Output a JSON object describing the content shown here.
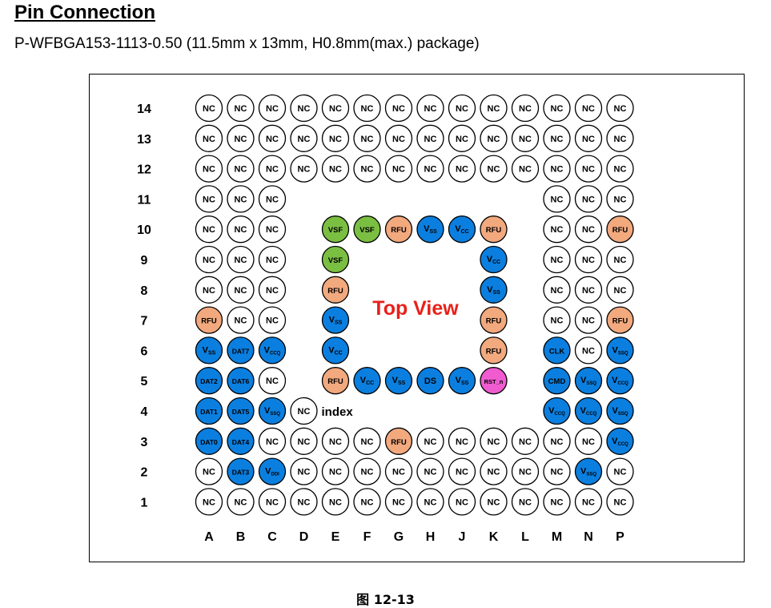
{
  "title": "Pin Connection",
  "subtitle": "P-WFBGA153-1113-0.50 (11.5mm x 13mm, H0.8mm(max.) package)",
  "top_view": "Top View",
  "index_label": "index",
  "caption": "图 12-13",
  "colors": {
    "nc": "#ffffff",
    "blue": "#0a7fe0",
    "orange": "#f2a97e",
    "green": "#7bbf42",
    "pink": "#f05bd0",
    "top_view": "#e8201a"
  },
  "columns": [
    "A",
    "B",
    "C",
    "D",
    "E",
    "F",
    "G",
    "H",
    "J",
    "K",
    "L",
    "M",
    "N",
    "P"
  ],
  "rows": [
    "14",
    "13",
    "12",
    "11",
    "10",
    "9",
    "8",
    "7",
    "6",
    "5",
    "4",
    "3",
    "2",
    "1"
  ],
  "pins": [
    {
      "row": "14",
      "col": "A",
      "label": "NC",
      "color": "nc"
    },
    {
      "row": "14",
      "col": "B",
      "label": "NC",
      "color": "nc"
    },
    {
      "row": "14",
      "col": "C",
      "label": "NC",
      "color": "nc"
    },
    {
      "row": "14",
      "col": "D",
      "label": "NC",
      "color": "nc"
    },
    {
      "row": "14",
      "col": "E",
      "label": "NC",
      "color": "nc"
    },
    {
      "row": "14",
      "col": "F",
      "label": "NC",
      "color": "nc"
    },
    {
      "row": "14",
      "col": "G",
      "label": "NC",
      "color": "nc"
    },
    {
      "row": "14",
      "col": "H",
      "label": "NC",
      "color": "nc"
    },
    {
      "row": "14",
      "col": "J",
      "label": "NC",
      "color": "nc"
    },
    {
      "row": "14",
      "col": "K",
      "label": "NC",
      "color": "nc"
    },
    {
      "row": "14",
      "col": "L",
      "label": "NC",
      "color": "nc"
    },
    {
      "row": "14",
      "col": "M",
      "label": "NC",
      "color": "nc"
    },
    {
      "row": "14",
      "col": "N",
      "label": "NC",
      "color": "nc"
    },
    {
      "row": "14",
      "col": "P",
      "label": "NC",
      "color": "nc"
    },
    {
      "row": "13",
      "col": "A",
      "label": "NC",
      "color": "nc"
    },
    {
      "row": "13",
      "col": "B",
      "label": "NC",
      "color": "nc"
    },
    {
      "row": "13",
      "col": "C",
      "label": "NC",
      "color": "nc"
    },
    {
      "row": "13",
      "col": "D",
      "label": "NC",
      "color": "nc"
    },
    {
      "row": "13",
      "col": "E",
      "label": "NC",
      "color": "nc"
    },
    {
      "row": "13",
      "col": "F",
      "label": "NC",
      "color": "nc"
    },
    {
      "row": "13",
      "col": "G",
      "label": "NC",
      "color": "nc"
    },
    {
      "row": "13",
      "col": "H",
      "label": "NC",
      "color": "nc"
    },
    {
      "row": "13",
      "col": "J",
      "label": "NC",
      "color": "nc"
    },
    {
      "row": "13",
      "col": "K",
      "label": "NC",
      "color": "nc"
    },
    {
      "row": "13",
      "col": "L",
      "label": "NC",
      "color": "nc"
    },
    {
      "row": "13",
      "col": "M",
      "label": "NC",
      "color": "nc"
    },
    {
      "row": "13",
      "col": "N",
      "label": "NC",
      "color": "nc"
    },
    {
      "row": "13",
      "col": "P",
      "label": "NC",
      "color": "nc"
    },
    {
      "row": "12",
      "col": "A",
      "label": "NC",
      "color": "nc"
    },
    {
      "row": "12",
      "col": "B",
      "label": "NC",
      "color": "nc"
    },
    {
      "row": "12",
      "col": "C",
      "label": "NC",
      "color": "nc"
    },
    {
      "row": "12",
      "col": "D",
      "label": "NC",
      "color": "nc"
    },
    {
      "row": "12",
      "col": "E",
      "label": "NC",
      "color": "nc"
    },
    {
      "row": "12",
      "col": "F",
      "label": "NC",
      "color": "nc"
    },
    {
      "row": "12",
      "col": "G",
      "label": "NC",
      "color": "nc"
    },
    {
      "row": "12",
      "col": "H",
      "label": "NC",
      "color": "nc"
    },
    {
      "row": "12",
      "col": "J",
      "label": "NC",
      "color": "nc"
    },
    {
      "row": "12",
      "col": "K",
      "label": "NC",
      "color": "nc"
    },
    {
      "row": "12",
      "col": "L",
      "label": "NC",
      "color": "nc"
    },
    {
      "row": "12",
      "col": "M",
      "label": "NC",
      "color": "nc"
    },
    {
      "row": "12",
      "col": "N",
      "label": "NC",
      "color": "nc"
    },
    {
      "row": "12",
      "col": "P",
      "label": "NC",
      "color": "nc"
    },
    {
      "row": "11",
      "col": "A",
      "label": "NC",
      "color": "nc"
    },
    {
      "row": "11",
      "col": "B",
      "label": "NC",
      "color": "nc"
    },
    {
      "row": "11",
      "col": "C",
      "label": "NC",
      "color": "nc"
    },
    {
      "row": "11",
      "col": "M",
      "label": "NC",
      "color": "nc"
    },
    {
      "row": "11",
      "col": "N",
      "label": "NC",
      "color": "nc"
    },
    {
      "row": "11",
      "col": "P",
      "label": "NC",
      "color": "nc"
    },
    {
      "row": "10",
      "col": "A",
      "label": "NC",
      "color": "nc"
    },
    {
      "row": "10",
      "col": "B",
      "label": "NC",
      "color": "nc"
    },
    {
      "row": "10",
      "col": "C",
      "label": "NC",
      "color": "nc"
    },
    {
      "row": "10",
      "col": "E",
      "label": "VSF",
      "color": "green"
    },
    {
      "row": "10",
      "col": "F",
      "label": "VSF",
      "color": "green"
    },
    {
      "row": "10",
      "col": "G",
      "label": "RFU",
      "color": "orange"
    },
    {
      "row": "10",
      "col": "H",
      "label": "V",
      "sub": "SS",
      "color": "blue"
    },
    {
      "row": "10",
      "col": "J",
      "label": "V",
      "sub": "CC",
      "color": "blue"
    },
    {
      "row": "10",
      "col": "K",
      "label": "RFU",
      "color": "orange"
    },
    {
      "row": "10",
      "col": "M",
      "label": "NC",
      "color": "nc"
    },
    {
      "row": "10",
      "col": "N",
      "label": "NC",
      "color": "nc"
    },
    {
      "row": "10",
      "col": "P",
      "label": "RFU",
      "color": "orange"
    },
    {
      "row": "9",
      "col": "A",
      "label": "NC",
      "color": "nc"
    },
    {
      "row": "9",
      "col": "B",
      "label": "NC",
      "color": "nc"
    },
    {
      "row": "9",
      "col": "C",
      "label": "NC",
      "color": "nc"
    },
    {
      "row": "9",
      "col": "E",
      "label": "VSF",
      "color": "green"
    },
    {
      "row": "9",
      "col": "K",
      "label": "V",
      "sub": "CC",
      "color": "blue"
    },
    {
      "row": "9",
      "col": "M",
      "label": "NC",
      "color": "nc"
    },
    {
      "row": "9",
      "col": "N",
      "label": "NC",
      "color": "nc"
    },
    {
      "row": "9",
      "col": "P",
      "label": "NC",
      "color": "nc"
    },
    {
      "row": "8",
      "col": "A",
      "label": "NC",
      "color": "nc"
    },
    {
      "row": "8",
      "col": "B",
      "label": "NC",
      "color": "nc"
    },
    {
      "row": "8",
      "col": "C",
      "label": "NC",
      "color": "nc"
    },
    {
      "row": "8",
      "col": "E",
      "label": "RFU",
      "color": "orange"
    },
    {
      "row": "8",
      "col": "K",
      "label": "V",
      "sub": "SS",
      "color": "blue"
    },
    {
      "row": "8",
      "col": "M",
      "label": "NC",
      "color": "nc"
    },
    {
      "row": "8",
      "col": "N",
      "label": "NC",
      "color": "nc"
    },
    {
      "row": "8",
      "col": "P",
      "label": "NC",
      "color": "nc"
    },
    {
      "row": "7",
      "col": "A",
      "label": "RFU",
      "color": "orange"
    },
    {
      "row": "7",
      "col": "B",
      "label": "NC",
      "color": "nc"
    },
    {
      "row": "7",
      "col": "C",
      "label": "NC",
      "color": "nc"
    },
    {
      "row": "7",
      "col": "E",
      "label": "V",
      "sub": "SS",
      "color": "blue"
    },
    {
      "row": "7",
      "col": "K",
      "label": "RFU",
      "color": "orange"
    },
    {
      "row": "7",
      "col": "M",
      "label": "NC",
      "color": "nc"
    },
    {
      "row": "7",
      "col": "N",
      "label": "NC",
      "color": "nc"
    },
    {
      "row": "7",
      "col": "P",
      "label": "RFU",
      "color": "orange"
    },
    {
      "row": "6",
      "col": "A",
      "label": "V",
      "sub": "SS",
      "color": "blue"
    },
    {
      "row": "6",
      "col": "B",
      "label": "DAT7",
      "color": "blue"
    },
    {
      "row": "6",
      "col": "C",
      "label": "V",
      "sub": "CCQ",
      "color": "blue"
    },
    {
      "row": "6",
      "col": "E",
      "label": "V",
      "sub": "CC",
      "color": "blue"
    },
    {
      "row": "6",
      "col": "K",
      "label": "RFU",
      "color": "orange"
    },
    {
      "row": "6",
      "col": "M",
      "label": "CLK",
      "color": "blue"
    },
    {
      "row": "6",
      "col": "N",
      "label": "NC",
      "color": "nc"
    },
    {
      "row": "6",
      "col": "P",
      "label": "V",
      "sub": "SSQ",
      "color": "blue"
    },
    {
      "row": "5",
      "col": "A",
      "label": "DAT2",
      "color": "blue"
    },
    {
      "row": "5",
      "col": "B",
      "label": "DAT6",
      "color": "blue"
    },
    {
      "row": "5",
      "col": "C",
      "label": "NC",
      "color": "nc"
    },
    {
      "row": "5",
      "col": "E",
      "label": "RFU",
      "color": "orange"
    },
    {
      "row": "5",
      "col": "F",
      "label": "V",
      "sub": "CC",
      "color": "blue"
    },
    {
      "row": "5",
      "col": "G",
      "label": "V",
      "sub": "SS",
      "color": "blue"
    },
    {
      "row": "5",
      "col": "H",
      "label": "DS",
      "color": "blue"
    },
    {
      "row": "5",
      "col": "J",
      "label": "V",
      "sub": "SS",
      "color": "blue"
    },
    {
      "row": "5",
      "col": "K",
      "label": "RST_n",
      "color": "pink"
    },
    {
      "row": "5",
      "col": "M",
      "label": "CMD",
      "color": "blue"
    },
    {
      "row": "5",
      "col": "N",
      "label": "V",
      "sub": "SSQ",
      "color": "blue"
    },
    {
      "row": "5",
      "col": "P",
      "label": "V",
      "sub": "CCQ",
      "color": "blue"
    },
    {
      "row": "4",
      "col": "A",
      "label": "DAT1",
      "color": "blue"
    },
    {
      "row": "4",
      "col": "B",
      "label": "DAT5",
      "color": "blue"
    },
    {
      "row": "4",
      "col": "C",
      "label": "V",
      "sub": "SSQ",
      "color": "blue"
    },
    {
      "row": "4",
      "col": "D",
      "label": "NC",
      "color": "nc"
    },
    {
      "row": "4",
      "col": "M",
      "label": "V",
      "sub": "CCQ",
      "color": "blue"
    },
    {
      "row": "4",
      "col": "N",
      "label": "V",
      "sub": "CCQ",
      "color": "blue"
    },
    {
      "row": "4",
      "col": "P",
      "label": "V",
      "sub": "SSQ",
      "color": "blue"
    },
    {
      "row": "3",
      "col": "A",
      "label": "DAT0",
      "color": "blue"
    },
    {
      "row": "3",
      "col": "B",
      "label": "DAT4",
      "color": "blue"
    },
    {
      "row": "3",
      "col": "C",
      "label": "NC",
      "color": "nc"
    },
    {
      "row": "3",
      "col": "D",
      "label": "NC",
      "color": "nc"
    },
    {
      "row": "3",
      "col": "E",
      "label": "NC",
      "color": "nc"
    },
    {
      "row": "3",
      "col": "F",
      "label": "NC",
      "color": "nc"
    },
    {
      "row": "3",
      "col": "G",
      "label": "RFU",
      "color": "orange"
    },
    {
      "row": "3",
      "col": "H",
      "label": "NC",
      "color": "nc"
    },
    {
      "row": "3",
      "col": "J",
      "label": "NC",
      "color": "nc"
    },
    {
      "row": "3",
      "col": "K",
      "label": "NC",
      "color": "nc"
    },
    {
      "row": "3",
      "col": "L",
      "label": "NC",
      "color": "nc"
    },
    {
      "row": "3",
      "col": "M",
      "label": "NC",
      "color": "nc"
    },
    {
      "row": "3",
      "col": "N",
      "label": "NC",
      "color": "nc"
    },
    {
      "row": "3",
      "col": "P",
      "label": "V",
      "sub": "CCQ",
      "color": "blue"
    },
    {
      "row": "2",
      "col": "A",
      "label": "NC",
      "color": "nc"
    },
    {
      "row": "2",
      "col": "B",
      "label": "DAT3",
      "color": "blue"
    },
    {
      "row": "2",
      "col": "C",
      "label": "V",
      "sub": "DDI",
      "color": "blue"
    },
    {
      "row": "2",
      "col": "D",
      "label": "NC",
      "color": "nc"
    },
    {
      "row": "2",
      "col": "E",
      "label": "NC",
      "color": "nc"
    },
    {
      "row": "2",
      "col": "F",
      "label": "NC",
      "color": "nc"
    },
    {
      "row": "2",
      "col": "G",
      "label": "NC",
      "color": "nc"
    },
    {
      "row": "2",
      "col": "H",
      "label": "NC",
      "color": "nc"
    },
    {
      "row": "2",
      "col": "J",
      "label": "NC",
      "color": "nc"
    },
    {
      "row": "2",
      "col": "K",
      "label": "NC",
      "color": "nc"
    },
    {
      "row": "2",
      "col": "L",
      "label": "NC",
      "color": "nc"
    },
    {
      "row": "2",
      "col": "M",
      "label": "NC",
      "color": "nc"
    },
    {
      "row": "2",
      "col": "N",
      "label": "V",
      "sub": "SSQ",
      "color": "blue"
    },
    {
      "row": "2",
      "col": "P",
      "label": "NC",
      "color": "nc"
    },
    {
      "row": "1",
      "col": "A",
      "label": "NC",
      "color": "nc"
    },
    {
      "row": "1",
      "col": "B",
      "label": "NC",
      "color": "nc"
    },
    {
      "row": "1",
      "col": "C",
      "label": "NC",
      "color": "nc"
    },
    {
      "row": "1",
      "col": "D",
      "label": "NC",
      "color": "nc"
    },
    {
      "row": "1",
      "col": "E",
      "label": "NC",
      "color": "nc"
    },
    {
      "row": "1",
      "col": "F",
      "label": "NC",
      "color": "nc"
    },
    {
      "row": "1",
      "col": "G",
      "label": "NC",
      "color": "nc"
    },
    {
      "row": "1",
      "col": "H",
      "label": "NC",
      "color": "nc"
    },
    {
      "row": "1",
      "col": "J",
      "label": "NC",
      "color": "nc"
    },
    {
      "row": "1",
      "col": "K",
      "label": "NC",
      "color": "nc"
    },
    {
      "row": "1",
      "col": "L",
      "label": "NC",
      "color": "nc"
    },
    {
      "row": "1",
      "col": "M",
      "label": "NC",
      "color": "nc"
    },
    {
      "row": "1",
      "col": "N",
      "label": "NC",
      "color": "nc"
    },
    {
      "row": "1",
      "col": "P",
      "label": "NC",
      "color": "nc"
    }
  ]
}
